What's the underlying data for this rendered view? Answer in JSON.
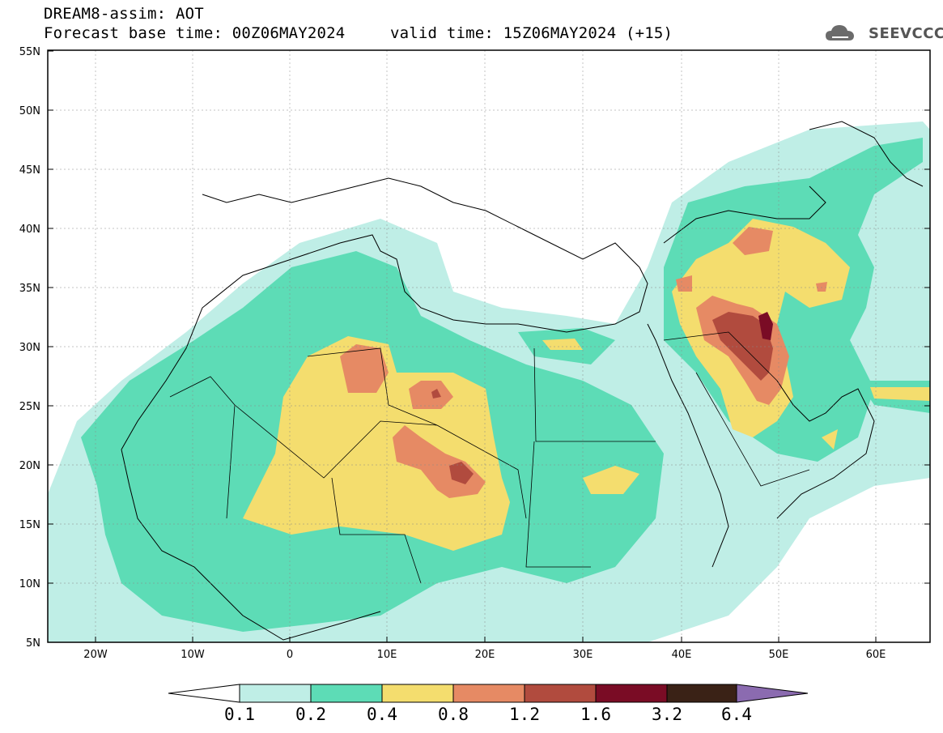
{
  "title": {
    "model": "DREAM8-assim: AOT",
    "base_time": "Forecast base time: 00Z06MAY2024",
    "valid_time": "valid time: 15Z06MAY2024 (+15)"
  },
  "logo": {
    "text": "SEEVCCC",
    "icon": "cloud-logo-icon"
  },
  "map": {
    "lat_labels": [
      "55N",
      "50N",
      "45N",
      "40N",
      "35N",
      "30N",
      "25N",
      "20N",
      "15N",
      "10N",
      "5N"
    ],
    "lon_labels": [
      "20W",
      "10W",
      "0",
      "10E",
      "20E",
      "30E",
      "40E",
      "50E",
      "60E"
    ],
    "lat_range": [
      5,
      55
    ],
    "lon_range": [
      -25,
      65
    ]
  },
  "colorbar": {
    "labels": [
      "0.1",
      "0.2",
      "0.4",
      "0.8",
      "1.2",
      "1.6",
      "3.2",
      "6.4"
    ],
    "colors": [
      "#ffffff",
      "#bfeee6",
      "#5ddcb6",
      "#f4dd6e",
      "#e68a64",
      "#b14b3e",
      "#7a0c25",
      "#3a2216",
      "#8b6bb0"
    ]
  }
}
